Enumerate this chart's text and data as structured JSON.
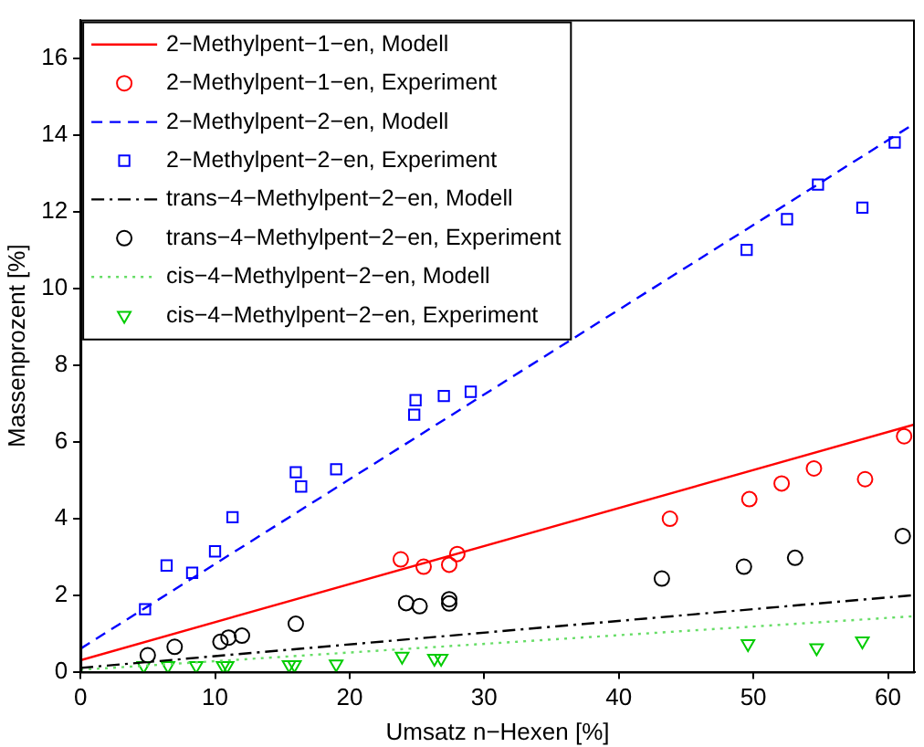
{
  "chart_data": {
    "type": "scatter",
    "xlabel": "Umsatz n−Hexen [%]",
    "ylabel": "Massenprozent [%]",
    "xlim": [
      0,
      62
    ],
    "xticks": [
      0,
      10,
      20,
      30,
      40,
      50,
      60
    ],
    "ylim": [
      0,
      17
    ],
    "yticks": [
      0,
      2,
      4,
      6,
      8,
      10,
      12,
      14,
      16
    ],
    "legend": "top left",
    "series": [
      {
        "name": "2−Methylpent−1−en, Modell",
        "type": "line",
        "color": "#ff0000",
        "line_style": "solid",
        "marker": "none",
        "x": [
          0,
          62
        ],
        "values": [
          0.3,
          6.45
        ]
      },
      {
        "name": "2−Methylpent−1−en, Experiment",
        "type": "scatter",
        "color": "#ff0000",
        "marker": "circle",
        "x": [
          23.8,
          25.5,
          27.4,
          28.0,
          43.8,
          49.7,
          52.1,
          54.5,
          58.3,
          61.2
        ],
        "values": [
          2.93,
          2.74,
          2.79,
          3.07,
          3.99,
          4.5,
          4.91,
          5.3,
          5.02,
          6.14
        ]
      },
      {
        "name": "2−Methylpent−2−en, Modell",
        "type": "line",
        "color": "#0000ff",
        "line_style": "dashed",
        "marker": "none",
        "x": [
          0,
          62
        ],
        "values": [
          0.6,
          14.3
        ]
      },
      {
        "name": "2−Methylpent−2−en, Experiment",
        "type": "scatter",
        "color": "#0000ff",
        "marker": "square",
        "x": [
          4.8,
          6.4,
          8.3,
          10.0,
          11.3,
          16.0,
          16.4,
          19.0,
          24.8,
          24.9,
          27.0,
          29.0,
          49.5,
          52.5,
          54.8,
          58.1,
          60.5
        ],
        "values": [
          1.63,
          2.77,
          2.58,
          3.14,
          4.03,
          5.2,
          4.83,
          5.28,
          6.7,
          7.08,
          7.19,
          7.3,
          11.0,
          11.8,
          12.7,
          12.1,
          13.8
        ]
      },
      {
        "name": "trans−4−Methylpent−2−en, Modell",
        "type": "line",
        "color": "#000000",
        "line_style": "dashdot",
        "marker": "none",
        "x": [
          0,
          62
        ],
        "values": [
          0.1,
          2.0
        ]
      },
      {
        "name": "trans−4−Methylpent−2−en, Experiment",
        "type": "scatter",
        "color": "#000000",
        "marker": "circle",
        "x": [
          5.0,
          7.0,
          10.4,
          11.0,
          12.0,
          16.0,
          24.2,
          25.2,
          27.4,
          27.4,
          43.2,
          49.3,
          53.1,
          61.1
        ],
        "values": [
          0.43,
          0.65,
          0.78,
          0.89,
          0.94,
          1.25,
          1.79,
          1.71,
          1.89,
          1.78,
          2.43,
          2.74,
          2.97,
          3.54
        ]
      },
      {
        "name": "cis−4−Methylpent−2−en, Modell",
        "type": "line",
        "color": "#66dd66",
        "line_style": "dotted",
        "marker": "none",
        "x": [
          0,
          62
        ],
        "values": [
          0.05,
          1.45
        ]
      },
      {
        "name": "cis−4−Methylpent−2−en, Experiment",
        "type": "scatter",
        "color": "#00cc00",
        "marker": "triangle",
        "x": [
          4.7,
          6.5,
          8.6,
          10.6,
          10.9,
          15.5,
          15.9,
          19.0,
          23.9,
          26.3,
          26.8,
          49.6,
          54.7,
          58.1
        ],
        "values": [
          0.16,
          0.16,
          0.16,
          0.16,
          0.16,
          0.18,
          0.18,
          0.2,
          0.4,
          0.35,
          0.35,
          0.73,
          0.62,
          0.8
        ]
      }
    ]
  }
}
